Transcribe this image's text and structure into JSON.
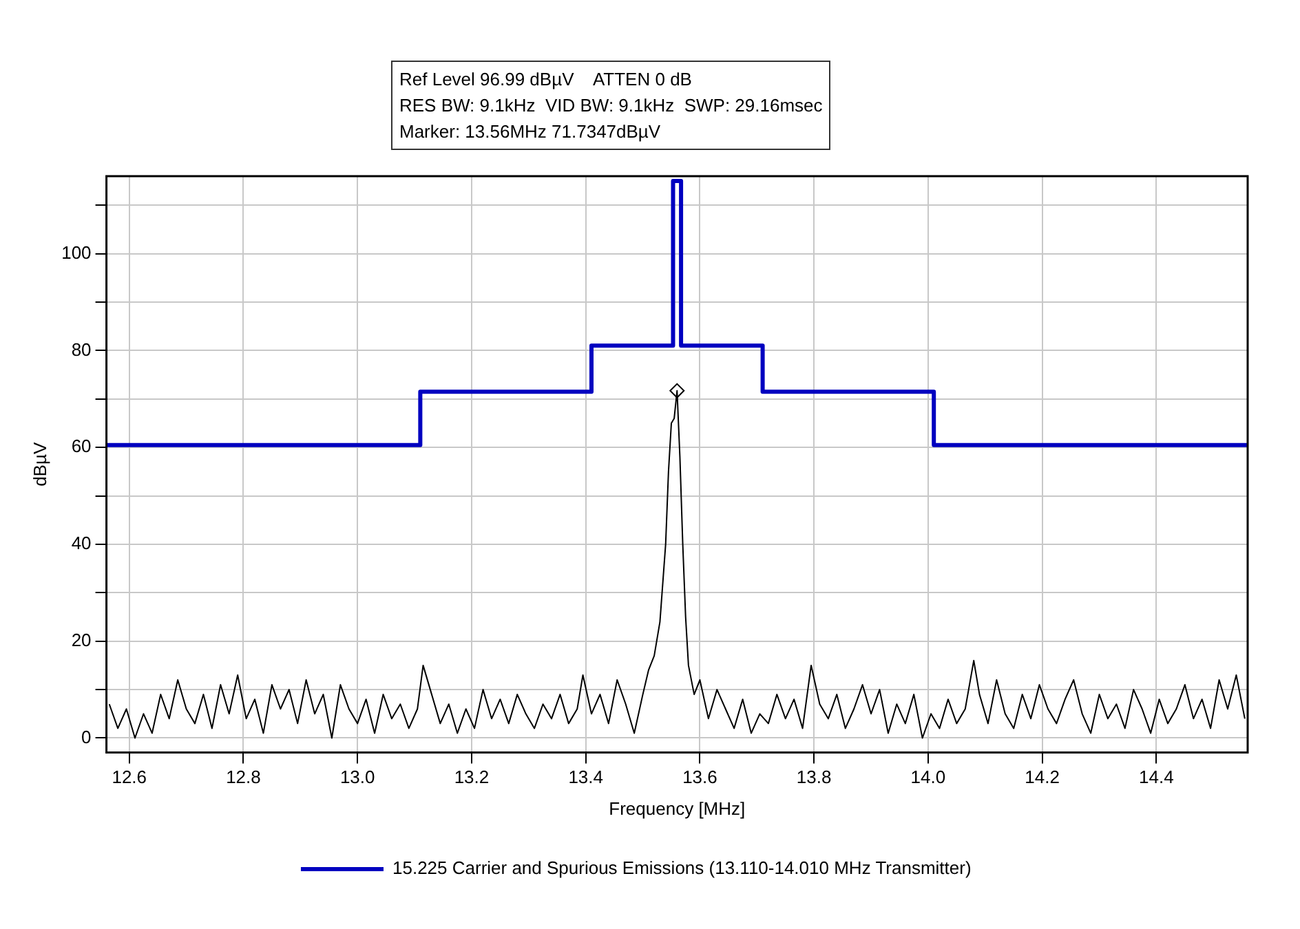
{
  "chart_data": {
    "type": "line",
    "xlabel": "Frequency [MHz]",
    "ylabel": "dBµV",
    "annotations": [
      "Ref Level 96.99 dBµV    ATTEN 0 dB",
      "RES BW: 9.1kHz  VID BW: 9.1kHz  SWP: 29.16msec",
      "Marker: 13.56MHz 71.7347dBµV"
    ],
    "xlim": [
      12.56,
      14.56
    ],
    "xticks": [
      12.6,
      12.8,
      {
        "value": 13,
        "label": "13.0"
      },
      13.2,
      13.4,
      13.6,
      13.8,
      {
        "value": 14,
        "label": "14.0"
      },
      14.2,
      14.4
    ],
    "ylim": [
      -3,
      116
    ],
    "yticks": [
      0,
      {
        "value": 10,
        "label": null
      },
      20,
      {
        "value": 30,
        "label": null
      },
      40,
      {
        "value": 50,
        "label": null
      },
      60,
      {
        "value": 70,
        "label": null
      },
      80,
      {
        "value": 90,
        "label": null
      },
      100,
      {
        "value": 110,
        "label": null
      }
    ],
    "grid": true,
    "legend": "bottom",
    "line_style": "solid",
    "series": [
      {
        "type": "line",
        "color": "#000000",
        "x": [
          12.565,
          12.58,
          12.595,
          12.61,
          12.625,
          12.64,
          12.655,
          12.67,
          12.685,
          12.7,
          12.715,
          12.73,
          12.745,
          12.76,
          12.775,
          12.79,
          12.805,
          12.82,
          12.835,
          12.85,
          12.865,
          12.88,
          12.895,
          12.91,
          12.925,
          12.94,
          12.955,
          12.97,
          12.985,
          13.0,
          13.015,
          13.03,
          13.045,
          13.06,
          13.075,
          13.09,
          13.105,
          13.115,
          13.13,
          13.145,
          13.16,
          13.175,
          13.19,
          13.205,
          13.22,
          13.235,
          13.25,
          13.265,
          13.28,
          13.295,
          13.31,
          13.325,
          13.34,
          13.355,
          13.37,
          13.385,
          13.395,
          13.41,
          13.425,
          13.44,
          13.455,
          13.47,
          13.485,
          13.5,
          13.51,
          13.52,
          13.53,
          13.54,
          13.545,
          13.55,
          13.555,
          13.56,
          13.565,
          13.57,
          13.575,
          13.58,
          13.59,
          13.6,
          13.615,
          13.63,
          13.645,
          13.66,
          13.675,
          13.69,
          13.705,
          13.72,
          13.735,
          13.75,
          13.765,
          13.78,
          13.795,
          13.81,
          13.825,
          13.84,
          13.855,
          13.87,
          13.885,
          13.9,
          13.915,
          13.93,
          13.945,
          13.96,
          13.975,
          13.99,
          14.005,
          14.02,
          14.035,
          14.05,
          14.065,
          14.08,
          14.09,
          14.105,
          14.12,
          14.135,
          14.15,
          14.165,
          14.18,
          14.195,
          14.21,
          14.225,
          14.24,
          14.255,
          14.27,
          14.285,
          14.3,
          14.315,
          14.33,
          14.345,
          14.36,
          14.375,
          14.39,
          14.405,
          14.42,
          14.435,
          14.45,
          14.465,
          14.48,
          14.495,
          14.51,
          14.525,
          14.54,
          14.555
        ],
        "values": [
          7,
          2,
          6,
          0,
          5,
          1,
          9,
          4,
          12,
          6,
          3,
          9,
          2,
          11,
          5,
          13,
          4,
          8,
          1,
          11,
          6,
          10,
          3,
          12,
          5,
          9,
          0,
          11,
          6,
          3,
          8,
          1,
          9,
          4,
          7,
          2,
          6,
          15,
          9,
          3,
          7,
          1,
          6,
          2,
          10,
          4,
          8,
          3,
          9,
          5,
          2,
          7,
          4,
          9,
          3,
          6,
          13,
          5,
          9,
          3,
          12,
          7,
          1,
          9,
          14,
          17,
          24,
          40,
          55,
          65,
          66,
          71.7,
          58,
          40,
          25,
          15,
          9,
          12,
          4,
          10,
          6,
          2,
          8,
          1,
          5,
          3,
          9,
          4,
          8,
          2,
          15,
          7,
          4,
          9,
          2,
          6,
          11,
          5,
          10,
          1,
          7,
          3,
          9,
          0,
          5,
          2,
          8,
          3,
          6,
          16,
          9,
          3,
          12,
          5,
          2,
          9,
          4,
          11,
          6,
          3,
          8,
          12,
          5,
          1,
          9,
          4,
          7,
          2,
          10,
          6,
          1,
          8,
          3,
          6,
          11,
          4,
          8,
          2,
          12,
          6,
          13,
          4
        ]
      },
      {
        "type": "step",
        "name": "15.225 Carrier and Spurious Emissions (13.110-14.010 MHz Transmitter)",
        "color": "#0000c0",
        "x": [
          12.56,
          13.11,
          13.41,
          13.553,
          13.567,
          13.71,
          14.01,
          14.56
        ],
        "values": [
          60.5,
          71.5,
          81,
          115,
          81,
          71.5,
          60.5,
          60.5
        ]
      },
      {
        "type": "scatter",
        "marker": "diamond",
        "color": "#000000",
        "x": [
          13.56
        ],
        "values": [
          71.7
        ]
      }
    ]
  }
}
